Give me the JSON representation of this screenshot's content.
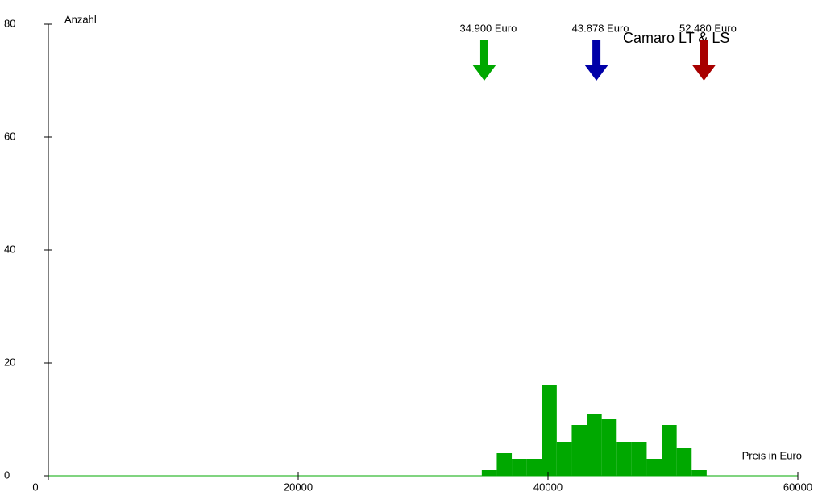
{
  "chart_data": {
    "type": "histogram",
    "title": "Camaro LT & LS",
    "x_label": "Preis in Euro",
    "y_label": "Anzahl",
    "bins": [
      34700,
      35900,
      37100,
      38300,
      39500,
      40700,
      41900,
      43100,
      44300,
      45500,
      46700,
      47900,
      49100,
      50300,
      51500,
      52700
    ],
    "values": [
      1,
      4,
      3,
      3,
      16,
      6,
      9,
      11,
      10,
      6,
      6,
      3,
      9,
      5,
      1
    ],
    "color": "#00a800",
    "xlim": [
      0,
      60000
    ],
    "xticks": [
      0,
      20000,
      40000,
      60000
    ],
    "ylim": [
      0,
      80
    ],
    "yticks": [
      0,
      20,
      40,
      60,
      80
    ],
    "markers": [
      {
        "value": 34900,
        "label": "34.900 Euro",
        "color": "#00a800"
      },
      {
        "value": 43878,
        "label": "43.878 Euro",
        "color": "#0000a8"
      },
      {
        "value": 52480,
        "label": "52.480 Euro",
        "color": "#a80000"
      }
    ]
  }
}
